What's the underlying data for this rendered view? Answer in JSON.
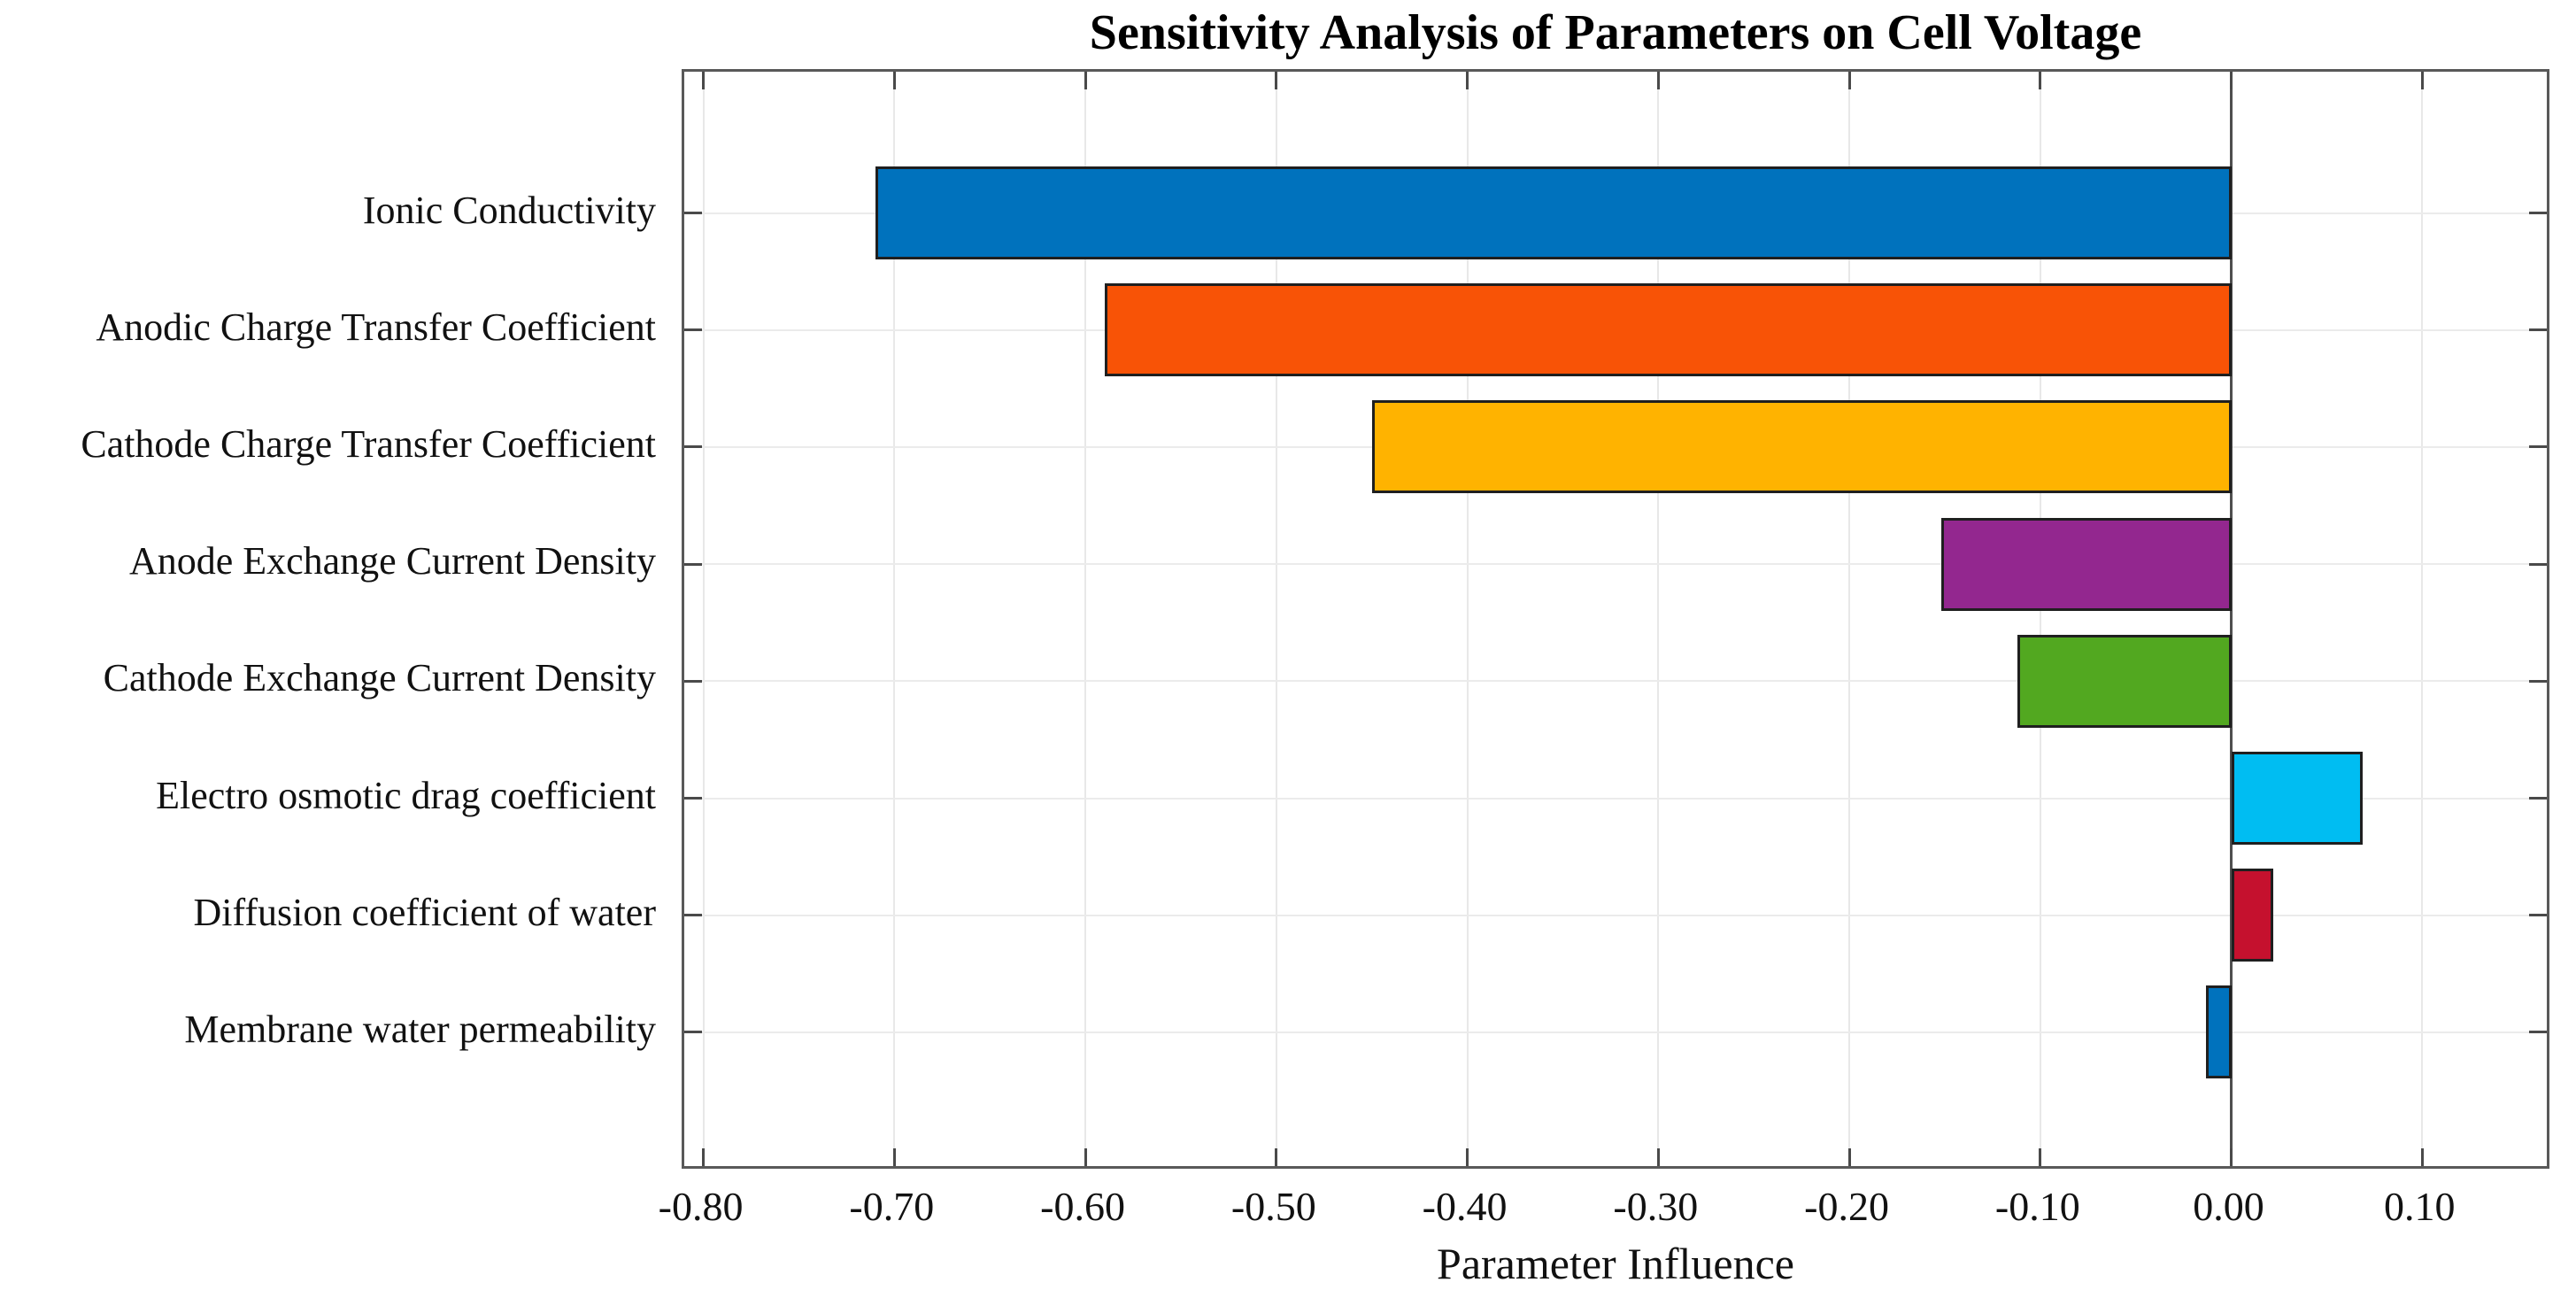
{
  "figure": {
    "title": "Sensitivity Analysis of Parameters on Cell Voltage",
    "xlabel": "Parameter Influence"
  },
  "chart_data": {
    "type": "bar",
    "orientation": "horizontal",
    "title": "Sensitivity Analysis of Parameters on Cell Voltage",
    "xlabel": "Parameter Influence",
    "ylabel": "",
    "categories": [
      "Ionic Conductivity",
      "Anodic Charge Transfer Coefficient",
      "Cathode Charge Transfer Coefficient",
      "Anode Exchange Current Density",
      "Cathode Exchange Current Density",
      "Electro osmotic drag coefficient",
      "Diffusion coefficient of water",
      "Membrane water permeability"
    ],
    "values": [
      -0.71,
      -0.59,
      -0.45,
      -0.152,
      -0.112,
      0.069,
      0.022,
      -0.013
    ],
    "bar_colors": [
      "#0072bd",
      "#f85306",
      "#ffb300",
      "#93278f",
      "#52a820",
      "#00bdf2",
      "#c5112e",
      "#0072bd"
    ],
    "bar_edge_color": "#1f1f1f",
    "xlim": [
      -0.81,
      0.168
    ],
    "xticks": [
      -0.8,
      -0.7,
      -0.6,
      -0.5,
      -0.4,
      -0.3,
      -0.2,
      -0.1,
      0.0,
      0.1
    ],
    "xtick_labels": [
      "-0.80",
      "-0.70",
      "-0.60",
      "-0.50",
      "-0.40",
      "-0.30",
      "-0.20",
      "-0.10",
      "0.00",
      "0.10"
    ],
    "grid": true,
    "legend": false
  },
  "colors": {
    "background": "#ffffff",
    "grid": "#e8e8e8",
    "axis": "#595959",
    "zero_line": "#4f4f4f",
    "text": "#111111"
  }
}
